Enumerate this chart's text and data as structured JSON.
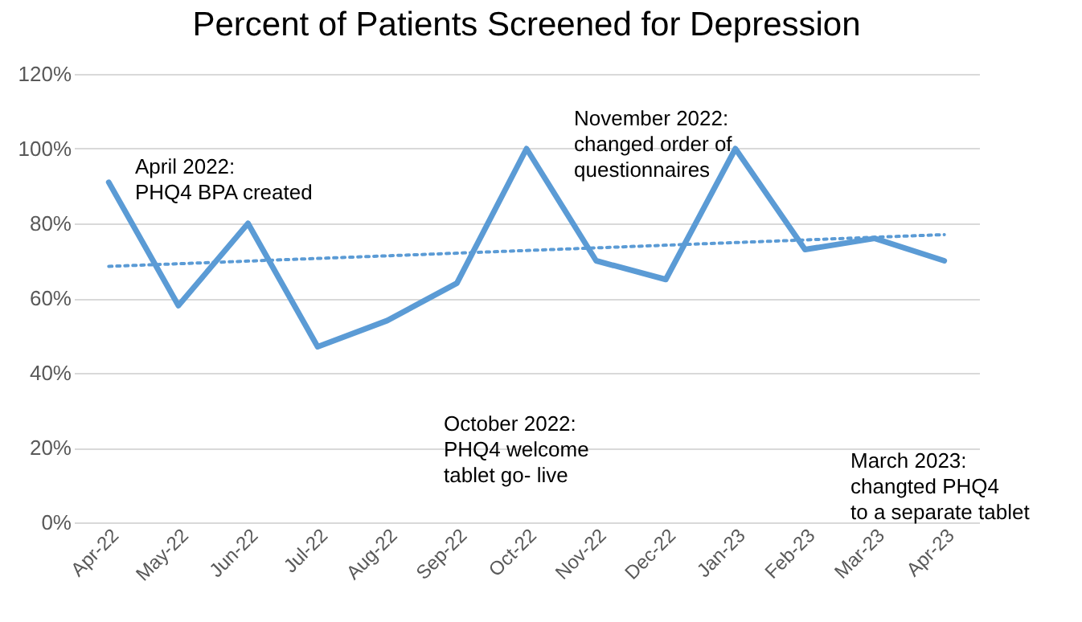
{
  "chart_data": {
    "type": "line",
    "title": "Percent of Patients Screened for Depression",
    "categories": [
      "Apr-22",
      "May-22",
      "Jun-22",
      "Jul-22",
      "Aug-22",
      "Sep-22",
      "Oct-22",
      "Nov-22",
      "Dec-22",
      "Jan-23",
      "Feb-23",
      "Mar-23",
      "Apr-23"
    ],
    "series": [
      {
        "color": "#5b9bd5",
        "values": [
          91,
          58,
          80,
          47,
          54,
          64,
          100,
          70,
          65,
          100,
          73,
          76,
          70
        ]
      },
      {
        "color": "#5b9bd5",
        "line_style": "dotted",
        "x": [
          "Apr-22",
          "Apr-23"
        ],
        "values": [
          68.5,
          77
        ]
      }
    ],
    "ylim": [
      0,
      120
    ],
    "yticks": [
      {
        "value": 0,
        "label": "0%"
      },
      {
        "value": 20,
        "label": "20%"
      },
      {
        "value": 40,
        "label": "40%"
      },
      {
        "value": 60,
        "label": "60%"
      },
      {
        "value": 80,
        "label": "80%"
      },
      {
        "value": 100,
        "label": "100%"
      },
      {
        "value": 120,
        "label": "120%"
      }
    ],
    "grid": "y",
    "annotations": [
      "April 2022:\nPHQ4 BPA created",
      "November 2022:\nchanged order of\nquestionnaires",
      "October 2022:\nPHQ4 welcome\ntablet go- live",
      "March 2023:\nchangted PHQ4\nto a separate tablet"
    ]
  }
}
